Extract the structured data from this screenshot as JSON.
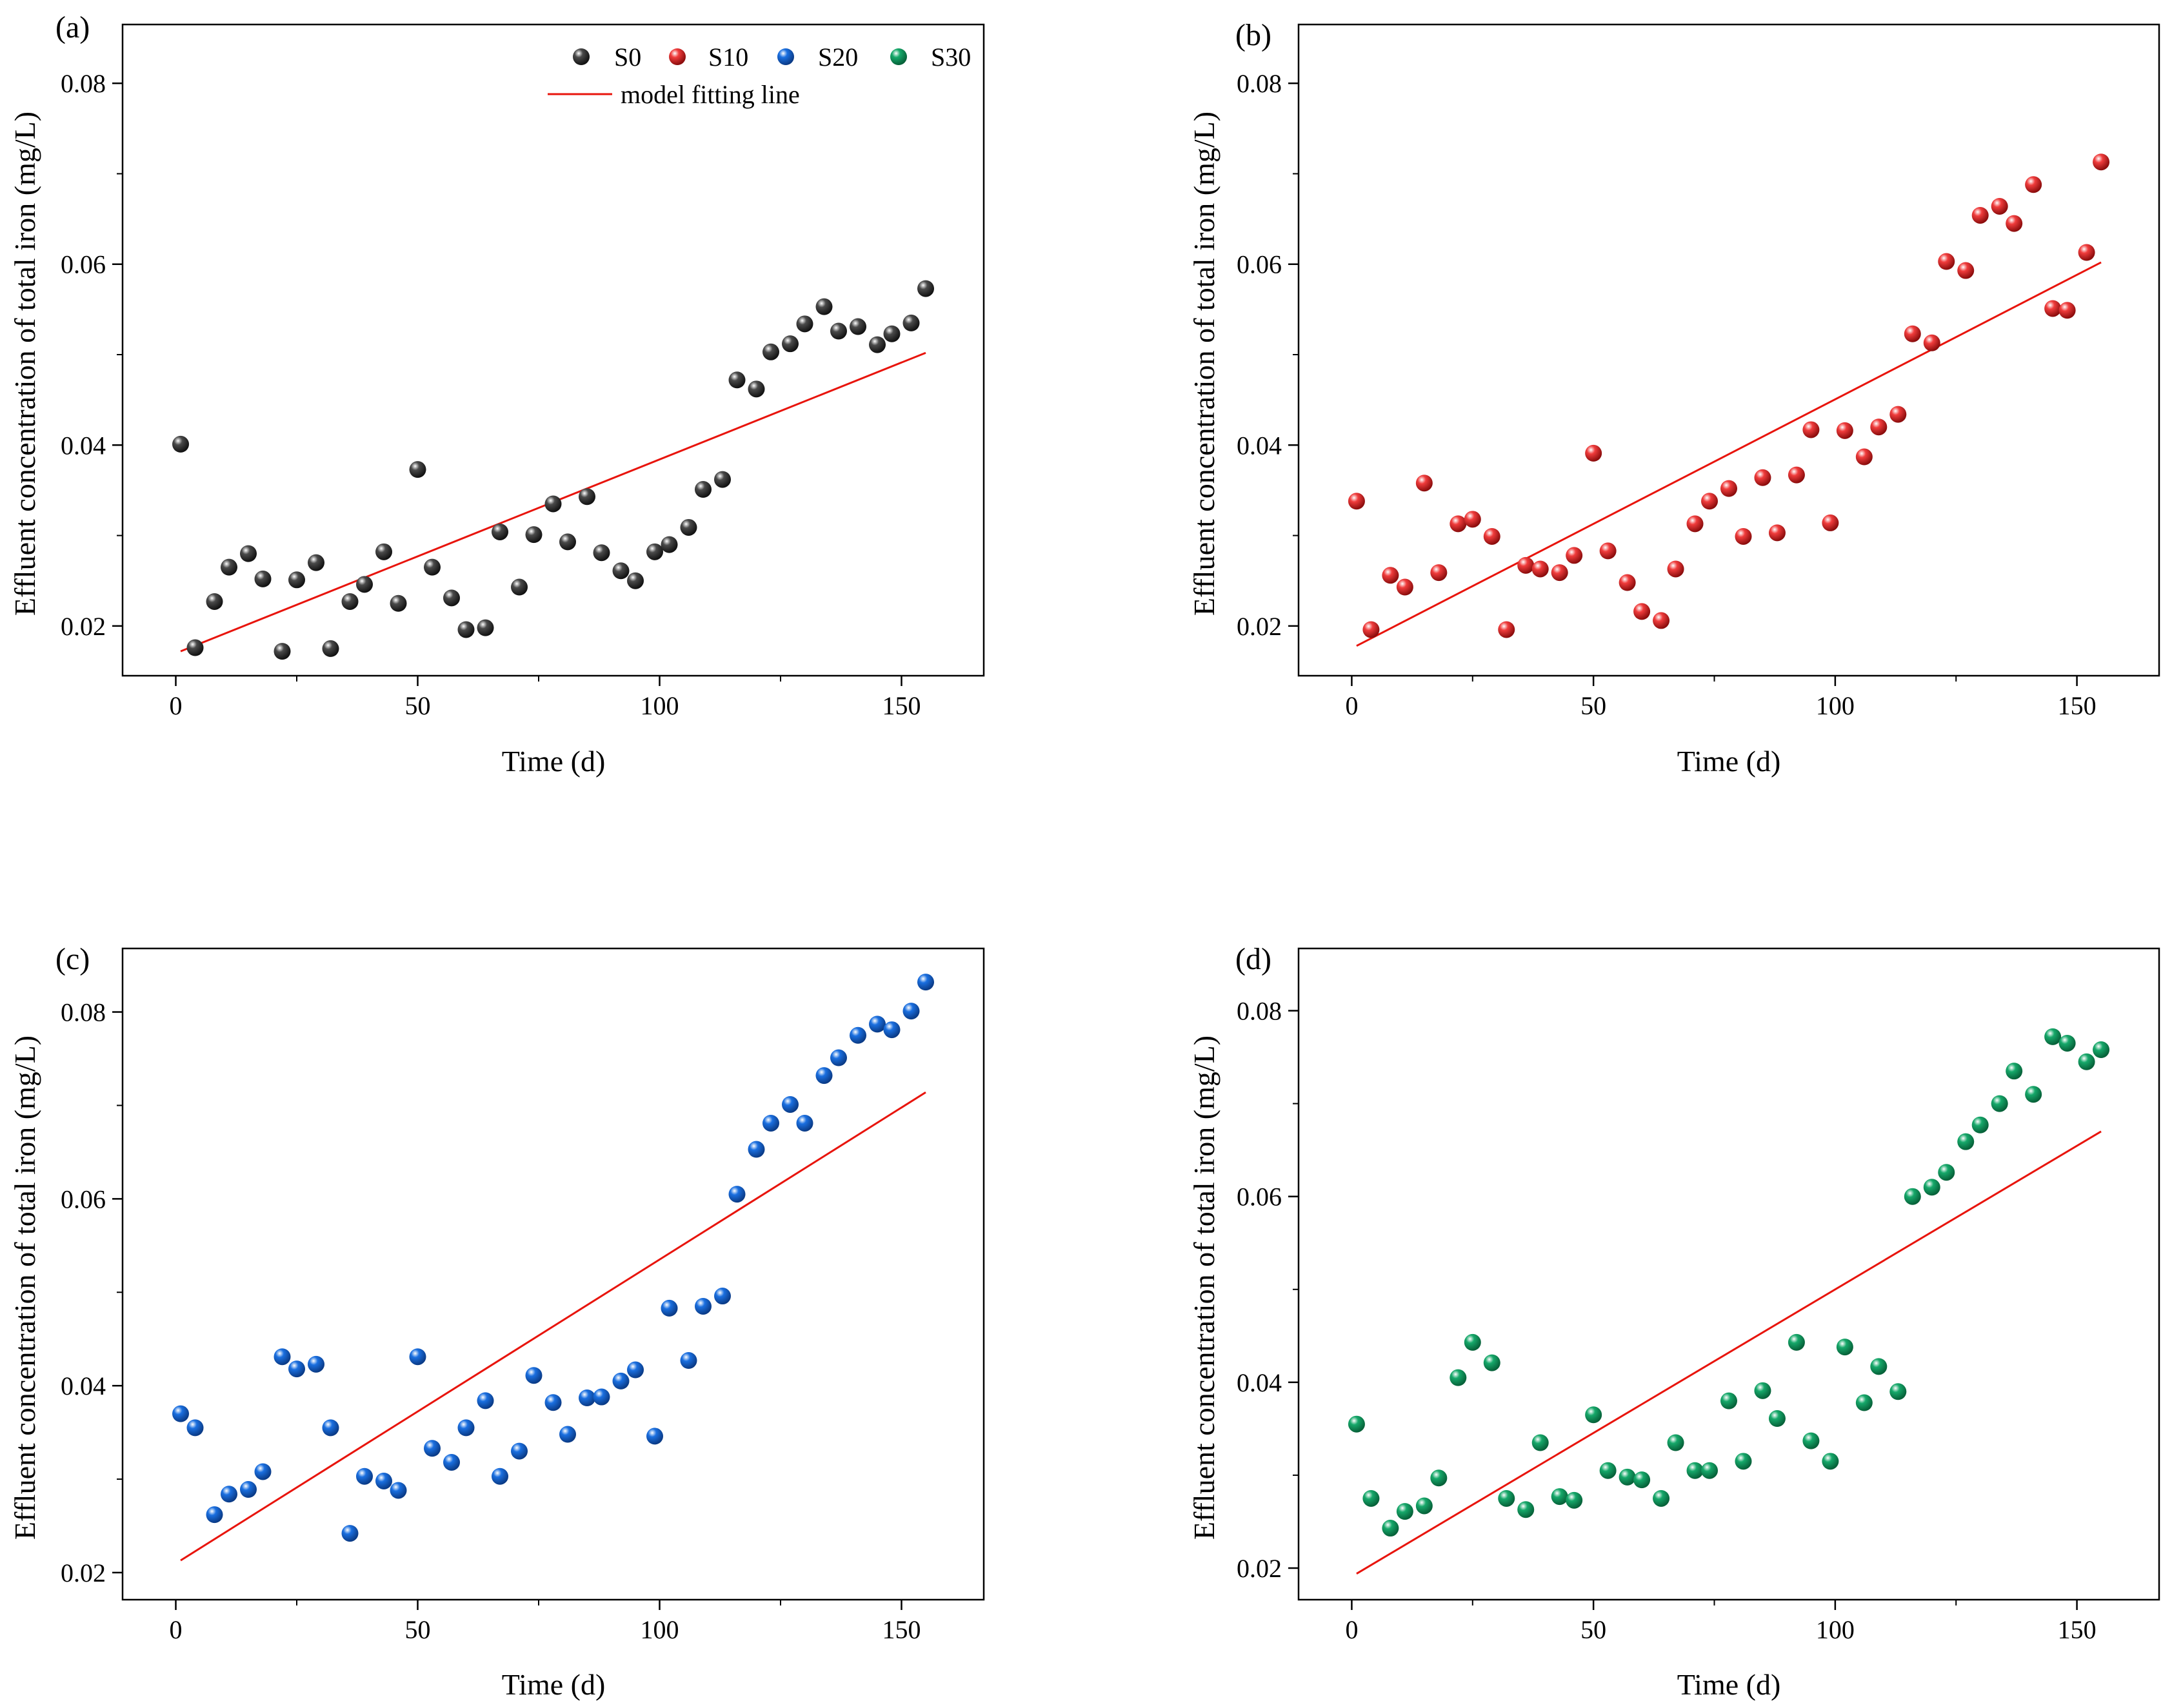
{
  "legend": {
    "entries": [
      {
        "name": "S0",
        "color": "#4a4a4a"
      },
      {
        "name": "S10",
        "color": "#f03c3c"
      },
      {
        "name": "S20",
        "color": "#1a6fe0"
      },
      {
        "name": "S30",
        "color": "#16a86a"
      }
    ],
    "fit_label": "model fitting line",
    "fit_color": "#e8140c"
  },
  "chart_data": [
    {
      "type": "scatter",
      "panel_label": "(a)",
      "title": "",
      "xlabel": "Time (d)",
      "ylabel": "Effluent concentration of total iron (mg/L)",
      "xlim": [
        -11,
        167
      ],
      "ylim": [
        0.0145,
        0.0865
      ],
      "xticks": [
        0,
        50,
        100,
        150
      ],
      "yticks": [
        0.02,
        0.04,
        0.06,
        0.08
      ],
      "xtick_labels": [
        "0",
        "50",
        "100",
        "150"
      ],
      "ytick_labels": [
        "0.02",
        "0.04",
        "0.06",
        "0.08"
      ],
      "grid": false,
      "legend": "top-right",
      "series": [
        {
          "name": "S0",
          "color": "#4a4a4a",
          "x": [
            1,
            4,
            8,
            11,
            15,
            18,
            22,
            25,
            29,
            32,
            36,
            39,
            43,
            46,
            50,
            53,
            57,
            60,
            64,
            67,
            71,
            74,
            78,
            81,
            85,
            88,
            92,
            95,
            99,
            102,
            106,
            109,
            113,
            116,
            120,
            123,
            127,
            130,
            134,
            137,
            141,
            145,
            148,
            152,
            155
          ],
          "y": [
            0.0401,
            0.0176,
            0.0227,
            0.0265,
            0.028,
            0.0252,
            0.0172,
            0.0251,
            0.027,
            0.0175,
            0.0227,
            0.0246,
            0.0282,
            0.0225,
            0.0373,
            0.0265,
            0.0231,
            0.0196,
            0.0198,
            0.0304,
            0.0243,
            0.0301,
            0.0335,
            0.0293,
            0.0343,
            0.0281,
            0.0261,
            0.025,
            0.0282,
            0.029,
            0.0309,
            0.0351,
            0.0362,
            0.0472,
            0.0462,
            0.0503,
            0.0512,
            0.0534,
            0.0553,
            0.0526,
            0.0531,
            0.0511,
            0.0523,
            0.0535,
            0.0573
          ]
        }
      ],
      "fit_line": {
        "name": "model fitting line",
        "x": [
          1,
          155
        ],
        "y": [
          0.0172,
          0.0502
        ]
      }
    },
    {
      "type": "scatter",
      "panel_label": "(b)",
      "title": "",
      "xlabel": "Time (d)",
      "ylabel": "Effluent concentration of total iron (mg/L)",
      "xlim": [
        -11,
        167
      ],
      "ylim": [
        0.0145,
        0.0865
      ],
      "xticks": [
        0,
        50,
        100,
        150
      ],
      "yticks": [
        0.02,
        0.04,
        0.06,
        0.08
      ],
      "xtick_labels": [
        "0",
        "50",
        "100",
        "150"
      ],
      "ytick_labels": [
        "0.02",
        "0.04",
        "0.06",
        "0.08"
      ],
      "grid": false,
      "series": [
        {
          "name": "S10",
          "color": "#f03c3c",
          "x": [
            1,
            4,
            8,
            11,
            15,
            18,
            22,
            25,
            29,
            32,
            36,
            39,
            43,
            46,
            50,
            53,
            57,
            60,
            64,
            67,
            71,
            74,
            78,
            81,
            85,
            88,
            92,
            95,
            99,
            102,
            106,
            109,
            113,
            116,
            120,
            123,
            127,
            130,
            134,
            137,
            141,
            145,
            148,
            152,
            155
          ],
          "y": [
            0.0338,
            0.0196,
            0.0256,
            0.0243,
            0.0358,
            0.0259,
            0.0313,
            0.0318,
            0.0299,
            0.0196,
            0.0267,
            0.0263,
            0.0259,
            0.0278,
            0.0391,
            0.0283,
            0.0248,
            0.0216,
            0.0206,
            0.0263,
            0.0313,
            0.0338,
            0.0352,
            0.0299,
            0.0364,
            0.0303,
            0.0367,
            0.0417,
            0.0314,
            0.0416,
            0.0387,
            0.042,
            0.0434,
            0.0523,
            0.0513,
            0.0603,
            0.0593,
            0.0654,
            0.0664,
            0.0645,
            0.0688,
            0.0551,
            0.0549,
            0.0613,
            0.0713
          ]
        }
      ],
      "fit_line": {
        "name": "model fitting line",
        "x": [
          1,
          155
        ],
        "y": [
          0.0178,
          0.0602
        ]
      }
    },
    {
      "type": "scatter",
      "panel_label": "(c)",
      "title": "",
      "xlabel": "Time (d)",
      "ylabel": "Effluent concentration of total iron (mg/L)",
      "xlim": [
        -11,
        167
      ],
      "ylim": [
        0.0171,
        0.0868
      ],
      "xticks": [
        0,
        50,
        100,
        150
      ],
      "yticks": [
        0.02,
        0.04,
        0.06,
        0.08
      ],
      "xtick_labels": [
        "0",
        "50",
        "100",
        "150"
      ],
      "ytick_labels": [
        "0.02",
        "0.04",
        "0.06",
        "0.08"
      ],
      "grid": false,
      "series": [
        {
          "name": "S20",
          "color": "#1a6fe0",
          "x": [
            1,
            4,
            8,
            11,
            15,
            18,
            22,
            25,
            29,
            32,
            36,
            39,
            43,
            46,
            50,
            53,
            57,
            60,
            64,
            67,
            71,
            74,
            78,
            81,
            85,
            88,
            92,
            95,
            99,
            102,
            106,
            109,
            113,
            116,
            120,
            123,
            127,
            130,
            134,
            137,
            141,
            145,
            148,
            152,
            155
          ],
          "y": [
            0.037,
            0.0355,
            0.0262,
            0.0284,
            0.0289,
            0.0308,
            0.0431,
            0.0418,
            0.0423,
            0.0355,
            0.0242,
            0.0303,
            0.0298,
            0.0288,
            0.0431,
            0.0333,
            0.0318,
            0.0355,
            0.0384,
            0.0303,
            0.033,
            0.0411,
            0.0382,
            0.0348,
            0.0387,
            0.0388,
            0.0405,
            0.0417,
            0.0346,
            0.0483,
            0.0427,
            0.0485,
            0.0496,
            0.0605,
            0.0653,
            0.0681,
            0.0701,
            0.0681,
            0.0732,
            0.0751,
            0.0775,
            0.0787,
            0.0781,
            0.0801,
            0.0832
          ]
        }
      ],
      "fit_line": {
        "name": "model fitting line",
        "x": [
          1,
          155
        ],
        "y": [
          0.0213,
          0.0714
        ]
      }
    },
    {
      "type": "scatter",
      "panel_label": "(d)",
      "title": "",
      "xlabel": "Time (d)",
      "ylabel": "Effluent concentration of total iron (mg/L)",
      "xlim": [
        -11,
        167
      ],
      "ylim": [
        0.0166,
        0.0867
      ],
      "xticks": [
        0,
        50,
        100,
        150
      ],
      "yticks": [
        0.02,
        0.04,
        0.06,
        0.08
      ],
      "xtick_labels": [
        "0",
        "50",
        "100",
        "150"
      ],
      "ytick_labels": [
        "0.02",
        "0.04",
        "0.06",
        "0.08"
      ],
      "grid": false,
      "series": [
        {
          "name": "S30",
          "color": "#16a86a",
          "x": [
            1,
            4,
            8,
            11,
            15,
            18,
            22,
            25,
            29,
            32,
            36,
            39,
            43,
            46,
            50,
            53,
            57,
            60,
            64,
            67,
            71,
            74,
            78,
            81,
            85,
            88,
            92,
            95,
            99,
            102,
            106,
            109,
            113,
            116,
            120,
            123,
            127,
            130,
            134,
            137,
            141,
            145,
            148,
            152,
            155
          ],
          "y": [
            0.0355,
            0.0275,
            0.0243,
            0.0261,
            0.0267,
            0.0297,
            0.0405,
            0.0443,
            0.0421,
            0.0275,
            0.0263,
            0.0335,
            0.0277,
            0.0273,
            0.0365,
            0.0305,
            0.0298,
            0.0295,
            0.0275,
            0.0335,
            0.0305,
            0.0305,
            0.038,
            0.0315,
            0.0391,
            0.0361,
            0.0443,
            0.0337,
            0.0315,
            0.0438,
            0.0378,
            0.0417,
            0.039,
            0.06,
            0.061,
            0.0626,
            0.0659,
            0.0677,
            0.07,
            0.0735,
            0.071,
            0.0772,
            0.0765,
            0.0745,
            0.0758
          ]
        }
      ],
      "fit_line": {
        "name": "model fitting line",
        "x": [
          1,
          155
        ],
        "y": [
          0.0194,
          0.067
        ]
      }
    }
  ]
}
